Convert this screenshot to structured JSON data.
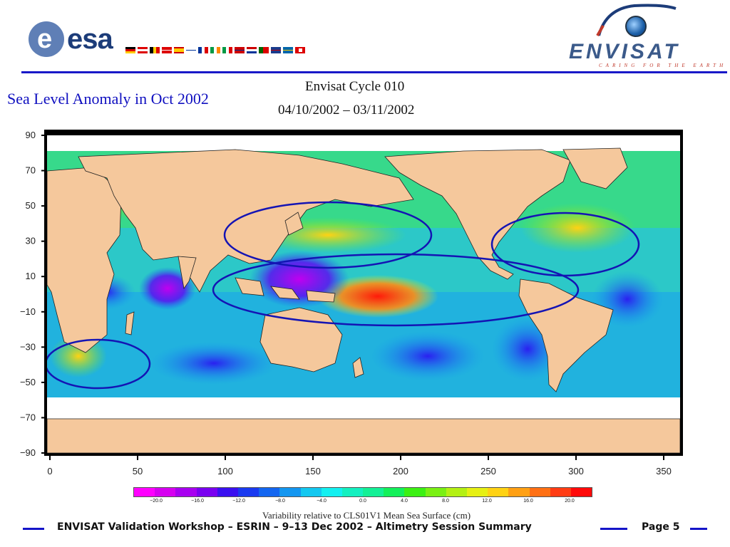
{
  "header": {
    "esa_logo_text": "esa",
    "esa_logo_e": "e",
    "envisat_logo_text": "ENVISAT",
    "envisat_tagline": "CARING FOR THE EARTH"
  },
  "slide": {
    "title": "Sea Level Anomaly in Oct 2002",
    "map_title": "Envisat Cycle 010",
    "map_dates": "04/10/2002 – 03/11/2002"
  },
  "map": {
    "x_ticks": [
      "0",
      "50",
      "100",
      "150",
      "200",
      "250",
      "300",
      "350"
    ],
    "y_ticks": [
      "90",
      "70",
      "50",
      "30",
      "10",
      "−10",
      "−30",
      "−50",
      "−70",
      "−90"
    ]
  },
  "colorbar": {
    "labels": [
      "−20.0",
      "−16.0",
      "−12.0",
      "−8.0",
      "−4.0",
      "0.0",
      "4.0",
      "8.0",
      "12.0",
      "16.0",
      "20.0"
    ],
    "caption": "Variability relative to CLS01V1 Mean Sea Surface (cm)",
    "colors": [
      "#ff00ff",
      "#d600f0",
      "#a800f0",
      "#7a00f0",
      "#3a10f0",
      "#1a3af0",
      "#1466f0",
      "#1496f0",
      "#14c8f0",
      "#14f0f0",
      "#14f0c0",
      "#14f096",
      "#14f05a",
      "#3cf014",
      "#7af014",
      "#b4f014",
      "#e6f014",
      "#ffd214",
      "#ffa014",
      "#ff7014",
      "#ff3c14",
      "#ff0a0a"
    ]
  },
  "footer": {
    "text": "ENVISAT Validation Workshop – ESRIN – 9–13 Dec 2002 – Altimetry Session Summary",
    "page": "Page 5"
  }
}
